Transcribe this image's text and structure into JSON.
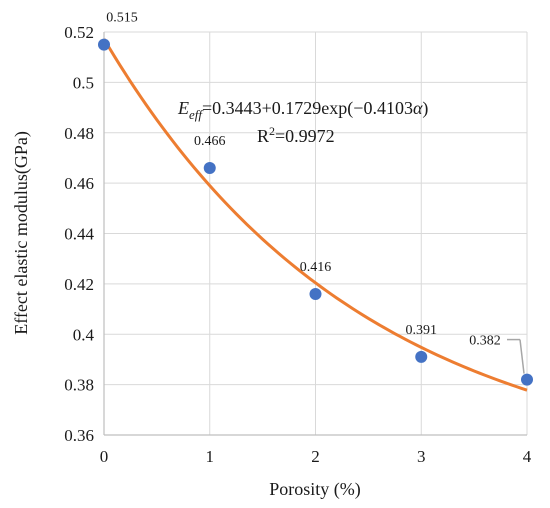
{
  "chart_data": {
    "type": "scatter",
    "x": [
      0,
      1,
      2,
      3,
      4
    ],
    "values": [
      0.515,
      0.466,
      0.416,
      0.391,
      0.382
    ],
    "data_labels": [
      "0.515",
      "0.466",
      "0.416",
      "0.391",
      "0.382"
    ],
    "xlabel": "Porosity (%)",
    "ylabel": "Effect elastic modulus(GPa)",
    "xlim": [
      0,
      4
    ],
    "ylim": [
      0.36,
      0.52
    ],
    "xticks": [
      "0",
      "1",
      "2",
      "3",
      "4"
    ],
    "yticks": [
      "0.36",
      "0.38",
      "0.4",
      "0.42",
      "0.44",
      "0.46",
      "0.48",
      "0.5",
      "0.52"
    ],
    "grid": true,
    "legend": "none",
    "marker_color": "#4472C4",
    "trendline": {
      "type": "exponential",
      "a": 0.3443,
      "b": 0.1729,
      "c": -0.4103,
      "color": "#ED7D31",
      "equation_main": "E",
      "equation_sub": "eff",
      "equation_rest": "=0.3443+0.1729exp(−0.4103",
      "equation_var": "α",
      "equation_close": ")",
      "r2_base": "R",
      "r2_sup": "2",
      "r2_value": "=0.9972"
    }
  }
}
